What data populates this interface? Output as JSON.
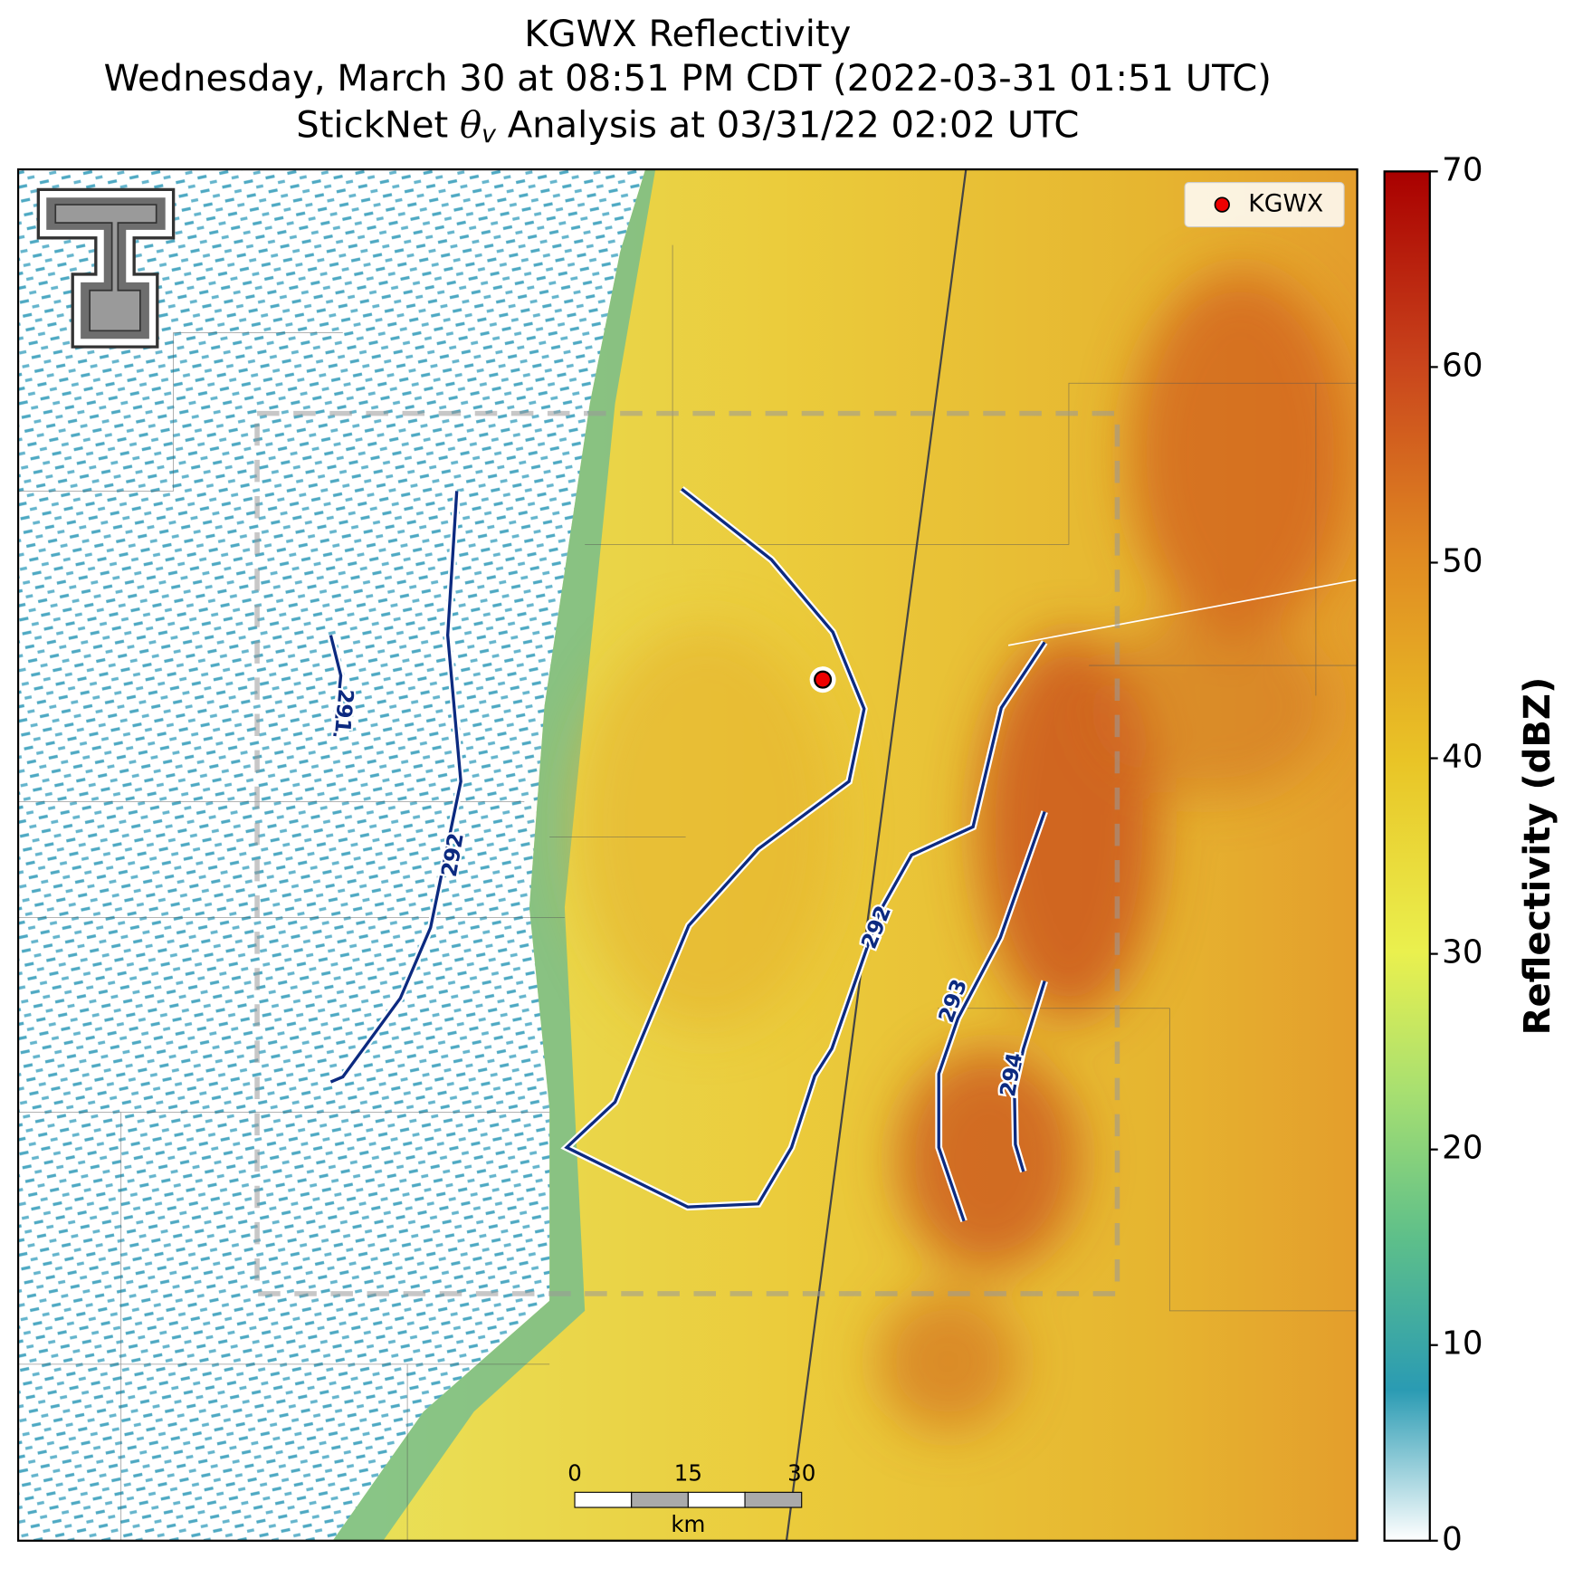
{
  "title": {
    "line1": "KGWX Reflectivity",
    "line2": "Wednesday, March 30 at 08:51 PM CDT (2022-03-31 01:51 UTC)",
    "line3_prefix": "StickNet ",
    "line3_symbol": "θ",
    "line3_subscript": "v",
    "line3_suffix": " Analysis at 03/31/22 02:02 UTC"
  },
  "legend": {
    "label": "KGWX"
  },
  "colorbar": {
    "label": "Reflectivity (dBZ)",
    "lim": [
      0,
      70
    ],
    "ticks": [
      0,
      10,
      20,
      30,
      40,
      50,
      60,
      70
    ]
  },
  "contours": [
    {
      "label": "291"
    },
    {
      "label": "292"
    },
    {
      "label": "292"
    },
    {
      "label": "293"
    },
    {
      "label": "294"
    }
  ],
  "scale_bar": {
    "ticks": [
      0,
      15,
      30
    ],
    "unit": "km"
  }
}
